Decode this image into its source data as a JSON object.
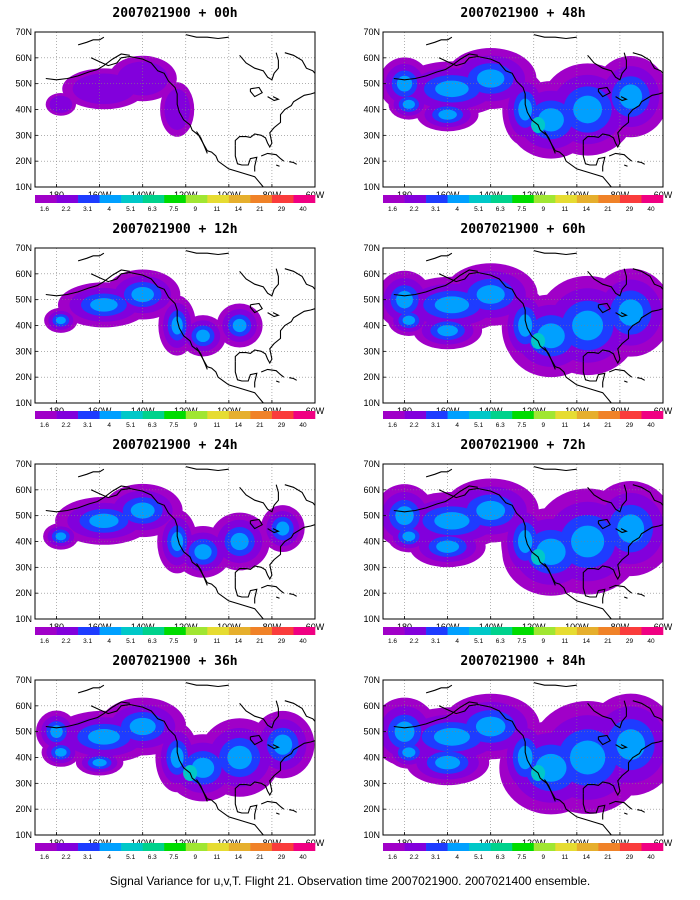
{
  "caption": "Signal Variance for u,v,T. Flight 21. Observation time 2007021900. 2007021400 ensemble.",
  "axes": {
    "lat_labels": [
      "70N",
      "60N",
      "50N",
      "40N",
      "30N",
      "20N",
      "10N"
    ],
    "lon_labels": [
      "180",
      "160W",
      "140W",
      "120W",
      "100W",
      "80W",
      "60W"
    ]
  },
  "colorbar": {
    "levels": [
      "1.6",
      "2.2",
      "3.1",
      "4",
      "5.1",
      "6.3",
      "7.5",
      "9",
      "11",
      "14",
      "21",
      "29",
      "40"
    ],
    "colors": [
      "#a000c8",
      "#8200dc",
      "#1e3cff",
      "#00a0ff",
      "#00c8c8",
      "#00d28c",
      "#00dc00",
      "#a0e632",
      "#e6dc32",
      "#e6af2d",
      "#f08228",
      "#fa3c3c",
      "#f00082"
    ]
  },
  "panels": [
    {
      "title": "2007021900 + 00h",
      "intensity": 0.3
    },
    {
      "title": "2007021900 + 12h",
      "intensity": 0.45
    },
    {
      "title": "2007021900 + 24h",
      "intensity": 0.55
    },
    {
      "title": "2007021900 + 36h",
      "intensity": 0.7
    },
    {
      "title": "2007021900 + 48h",
      "intensity": 0.8
    },
    {
      "title": "2007021900 + 60h",
      "intensity": 0.85
    },
    {
      "title": "2007021900 + 72h",
      "intensity": 0.9
    },
    {
      "title": "2007021900 + 84h",
      "intensity": 0.95
    }
  ]
}
